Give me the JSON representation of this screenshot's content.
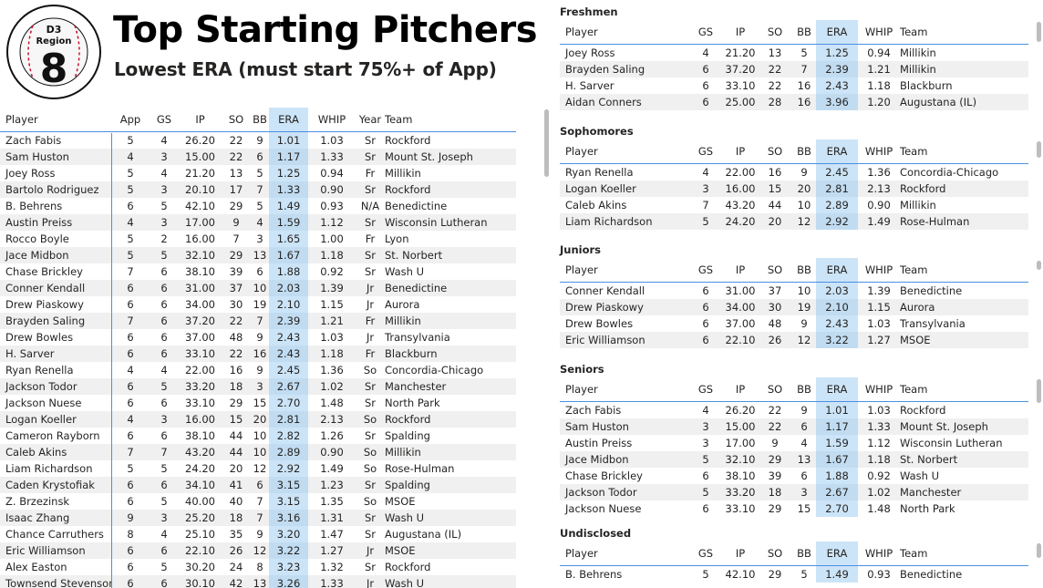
{
  "header": {
    "title": "Top Starting Pitchers",
    "subtitle": "Lowest ERA (must start 75%+ of App)",
    "logo_text": "D3 Region 8",
    "logo_top": "D3",
    "logo_mid": "Region",
    "logo_num": "8"
  },
  "main_table": {
    "columns": [
      "Player",
      "App",
      "GS",
      "IP",
      "SO",
      "BB",
      "ERA",
      "WHIP",
      "Year",
      "Team"
    ],
    "rows": [
      [
        "Zach Fabis",
        "5",
        "4",
        "26.20",
        "22",
        "9",
        "1.01",
        "1.03",
        "Sr",
        "Rockford"
      ],
      [
        "Sam Huston",
        "4",
        "3",
        "15.00",
        "22",
        "6",
        "1.17",
        "1.33",
        "Sr",
        "Mount St. Joseph"
      ],
      [
        "Joey Ross",
        "5",
        "4",
        "21.20",
        "13",
        "5",
        "1.25",
        "0.94",
        "Fr",
        "Millikin"
      ],
      [
        "Bartolo Rodriguez",
        "5",
        "3",
        "20.10",
        "17",
        "7",
        "1.33",
        "0.90",
        "Sr",
        "Rockford"
      ],
      [
        "B. Behrens",
        "6",
        "5",
        "42.10",
        "29",
        "5",
        "1.49",
        "0.93",
        "N/A",
        "Benedictine"
      ],
      [
        "Austin Preiss",
        "4",
        "3",
        "17.00",
        "9",
        "4",
        "1.59",
        "1.12",
        "Sr",
        "Wisconsin Lutheran"
      ],
      [
        "Rocco Boyle",
        "5",
        "2",
        "16.00",
        "7",
        "3",
        "1.65",
        "1.00",
        "Fr",
        "Lyon"
      ],
      [
        "Jace Midbon",
        "5",
        "5",
        "32.10",
        "29",
        "13",
        "1.67",
        "1.18",
        "Sr",
        "St. Norbert"
      ],
      [
        "Chase Brickley",
        "7",
        "6",
        "38.10",
        "39",
        "6",
        "1.88",
        "0.92",
        "Sr",
        "Wash U"
      ],
      [
        "Conner Kendall",
        "6",
        "6",
        "31.00",
        "37",
        "10",
        "2.03",
        "1.39",
        "Jr",
        "Benedictine"
      ],
      [
        "Drew Piaskowy",
        "6",
        "6",
        "34.00",
        "30",
        "19",
        "2.10",
        "1.15",
        "Jr",
        "Aurora"
      ],
      [
        "Brayden Saling",
        "7",
        "6",
        "37.20",
        "22",
        "7",
        "2.39",
        "1.21",
        "Fr",
        "Millikin"
      ],
      [
        "Drew Bowles",
        "6",
        "6",
        "37.00",
        "48",
        "9",
        "2.43",
        "1.03",
        "Jr",
        "Transylvania"
      ],
      [
        "H. Sarver",
        "6",
        "6",
        "33.10",
        "22",
        "16",
        "2.43",
        "1.18",
        "Fr",
        "Blackburn"
      ],
      [
        "Ryan Renella",
        "4",
        "4",
        "22.00",
        "16",
        "9",
        "2.45",
        "1.36",
        "So",
        "Concordia-Chicago"
      ],
      [
        "Jackson Todor",
        "6",
        "5",
        "33.20",
        "18",
        "3",
        "2.67",
        "1.02",
        "Sr",
        "Manchester"
      ],
      [
        "Jackson Nuese",
        "6",
        "6",
        "33.10",
        "29",
        "15",
        "2.70",
        "1.48",
        "Sr",
        "North Park"
      ],
      [
        "Logan Koeller",
        "4",
        "3",
        "16.00",
        "15",
        "20",
        "2.81",
        "2.13",
        "So",
        "Rockford"
      ],
      [
        "Cameron Rayborn",
        "6",
        "6",
        "38.10",
        "44",
        "10",
        "2.82",
        "1.26",
        "Sr",
        "Spalding"
      ],
      [
        "Caleb Akins",
        "7",
        "7",
        "43.20",
        "44",
        "10",
        "2.89",
        "0.90",
        "So",
        "Millikin"
      ],
      [
        "Liam Richardson",
        "5",
        "5",
        "24.20",
        "20",
        "12",
        "2.92",
        "1.49",
        "So",
        "Rose-Hulman"
      ],
      [
        "Caden Krystofiak",
        "6",
        "6",
        "34.10",
        "41",
        "6",
        "3.15",
        "1.23",
        "Sr",
        "Spalding"
      ],
      [
        "Z. Brzezinsk",
        "6",
        "5",
        "40.00",
        "40",
        "7",
        "3.15",
        "1.35",
        "So",
        "MSOE"
      ],
      [
        "Isaac Zhang",
        "9",
        "3",
        "25.20",
        "18",
        "7",
        "3.16",
        "1.31",
        "Sr",
        "Wash U"
      ],
      [
        "Chance Carruthers",
        "8",
        "4",
        "25.10",
        "35",
        "9",
        "3.20",
        "1.47",
        "Sr",
        "Augustana (IL)"
      ],
      [
        "Eric Williamson",
        "6",
        "6",
        "22.10",
        "26",
        "12",
        "3.22",
        "1.27",
        "Jr",
        "MSOE"
      ],
      [
        "Alex Easton",
        "6",
        "5",
        "30.20",
        "24",
        "8",
        "3.23",
        "1.32",
        "Sr",
        "Rockford"
      ],
      [
        "Townsend Stevenson",
        "6",
        "6",
        "30.10",
        "42",
        "13",
        "3.26",
        "1.33",
        "Jr",
        "Wash U"
      ]
    ]
  },
  "panels": [
    {
      "title": "Freshmen",
      "columns": [
        "Player",
        "GS",
        "IP",
        "SO",
        "BB",
        "ERA",
        "WHIP",
        "Team"
      ],
      "rows": [
        [
          "Joey Ross",
          "4",
          "21.20",
          "13",
          "5",
          "1.25",
          "0.94",
          "Millikin"
        ],
        [
          "Brayden Saling",
          "6",
          "37.20",
          "22",
          "7",
          "2.39",
          "1.21",
          "Millikin"
        ],
        [
          "H. Sarver",
          "6",
          "33.10",
          "22",
          "16",
          "2.43",
          "1.18",
          "Blackburn"
        ],
        [
          "Aidan Conners",
          "6",
          "25.00",
          "28",
          "16",
          "3.96",
          "1.20",
          "Augustana (IL)"
        ]
      ]
    },
    {
      "title": "Sophomores",
      "columns": [
        "Player",
        "GS",
        "IP",
        "SO",
        "BB",
        "ERA",
        "WHIP",
        "Team"
      ],
      "rows": [
        [
          "Ryan Renella",
          "4",
          "22.00",
          "16",
          "9",
          "2.45",
          "1.36",
          "Concordia-Chicago"
        ],
        [
          "Logan Koeller",
          "3",
          "16.00",
          "15",
          "20",
          "2.81",
          "2.13",
          "Rockford"
        ],
        [
          "Caleb Akins",
          "7",
          "43.20",
          "44",
          "10",
          "2.89",
          "0.90",
          "Millikin"
        ],
        [
          "Liam Richardson",
          "5",
          "24.20",
          "20",
          "12",
          "2.92",
          "1.49",
          "Rose-Hulman"
        ]
      ]
    },
    {
      "title": "Juniors",
      "columns": [
        "Player",
        "GS",
        "IP",
        "SO",
        "BB",
        "ERA",
        "WHIP",
        "Team"
      ],
      "rows": [
        [
          "Conner Kendall",
          "6",
          "31.00",
          "37",
          "10",
          "2.03",
          "1.39",
          "Benedictine"
        ],
        [
          "Drew Piaskowy",
          "6",
          "34.00",
          "30",
          "19",
          "2.10",
          "1.15",
          "Aurora"
        ],
        [
          "Drew Bowles",
          "6",
          "37.00",
          "48",
          "9",
          "2.43",
          "1.03",
          "Transylvania"
        ],
        [
          "Eric Williamson",
          "6",
          "22.10",
          "26",
          "12",
          "3.22",
          "1.27",
          "MSOE"
        ]
      ]
    },
    {
      "title": "Seniors",
      "columns": [
        "Player",
        "GS",
        "IP",
        "SO",
        "BB",
        "ERA",
        "WHIP",
        "Team"
      ],
      "rows": [
        [
          "Zach Fabis",
          "4",
          "26.20",
          "22",
          "9",
          "1.01",
          "1.03",
          "Rockford"
        ],
        [
          "Sam Huston",
          "3",
          "15.00",
          "22",
          "6",
          "1.17",
          "1.33",
          "Mount St. Joseph"
        ],
        [
          "Austin Preiss",
          "3",
          "17.00",
          "9",
          "4",
          "1.59",
          "1.12",
          "Wisconsin Lutheran"
        ],
        [
          "Jace Midbon",
          "5",
          "32.10",
          "29",
          "13",
          "1.67",
          "1.18",
          "St. Norbert"
        ],
        [
          "Chase Brickley",
          "6",
          "38.10",
          "39",
          "6",
          "1.88",
          "0.92",
          "Wash U"
        ],
        [
          "Jackson Todor",
          "5",
          "33.20",
          "18",
          "3",
          "2.67",
          "1.02",
          "Manchester"
        ],
        [
          "Jackson Nuese",
          "6",
          "33.10",
          "29",
          "15",
          "2.70",
          "1.48",
          "North Park"
        ]
      ]
    },
    {
      "title": "Undisclosed",
      "columns": [
        "Player",
        "GS",
        "IP",
        "SO",
        "BB",
        "ERA",
        "WHIP",
        "Team"
      ],
      "rows": [
        [
          "B. Behrens",
          "5",
          "42.10",
          "29",
          "5",
          "1.49",
          "0.93",
          "Benedictine"
        ]
      ]
    }
  ],
  "colors": {
    "era_highlight": "#cce4f7",
    "header_border": "#4a90e2",
    "logo_red": "#c8102e"
  }
}
